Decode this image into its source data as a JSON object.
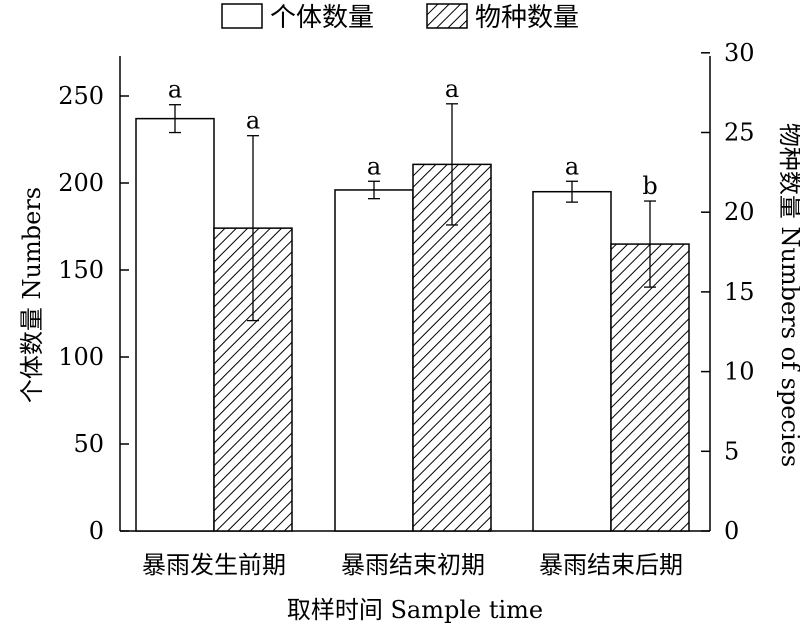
{
  "chart_data": {
    "type": "bar",
    "categories": [
      "暴雨发生前期",
      "暴雨结束初期",
      "暴雨结束后期"
    ],
    "series": [
      {
        "name": "个体数量",
        "axis": "left",
        "pattern": "solid-white",
        "values": [
          237,
          196,
          195
        ],
        "errors": [
          8,
          5,
          6
        ],
        "labels": [
          "a",
          "a",
          "a"
        ]
      },
      {
        "name": "物种数量",
        "axis": "right",
        "pattern": "hatch",
        "values": [
          19,
          23,
          18
        ],
        "errors": [
          5.8,
          3.8,
          2.7
        ],
        "labels": [
          "a",
          "a",
          "b"
        ]
      }
    ],
    "xlabel": "取样时间 Sample time",
    "ylabel_left": "个体数量 Numbers",
    "ylabel_right": "物种数量 Numbers of species",
    "ylim_left": [
      0,
      275
    ],
    "ylim_right": [
      0,
      30
    ],
    "yticks_left": [
      "0",
      "50",
      "100",
      "150",
      "200",
      "250"
    ],
    "yticks_right": [
      "0",
      "5",
      "10",
      "15",
      "20",
      "25",
      "30"
    ],
    "legend_position": "top-center",
    "grid": false
  }
}
